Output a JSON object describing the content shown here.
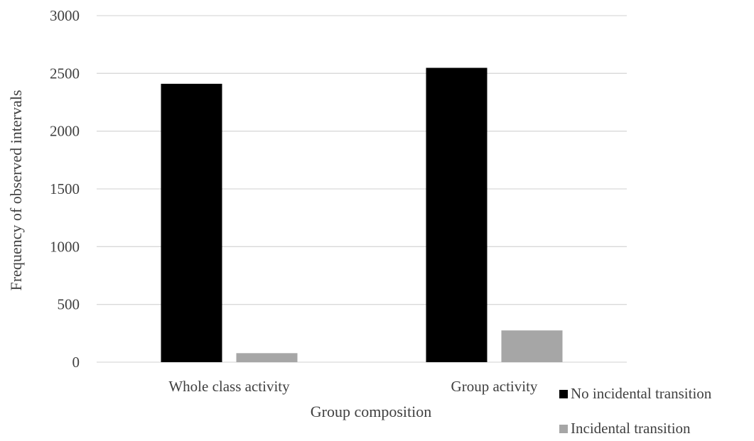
{
  "chart_data": {
    "type": "bar",
    "title": "",
    "xlabel": "Group composition",
    "ylabel": "Frequency of observed  intervals",
    "categories": [
      "Whole class activity",
      "Group activity"
    ],
    "series": [
      {
        "name": "No incidental transition",
        "values": [
          2410,
          2548
        ],
        "color": "#000000"
      },
      {
        "name": "Incidental transition",
        "values": [
          78,
          275
        ],
        "color": "#a6a6a6"
      }
    ],
    "ylim": [
      0,
      3000
    ],
    "yticks": [
      0,
      500,
      1000,
      1500,
      2000,
      2500,
      3000
    ],
    "grid": true,
    "legend_position": "bottom-right"
  }
}
